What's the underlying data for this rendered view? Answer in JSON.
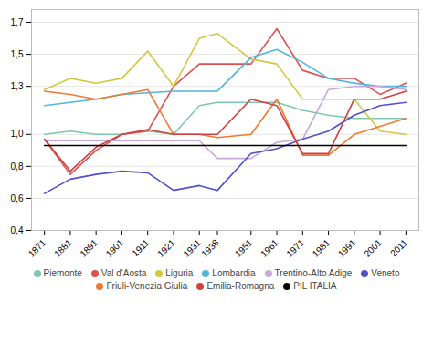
{
  "chart_data": {
    "type": "line",
    "x": [
      1871,
      1881,
      1891,
      1901,
      1911,
      1921,
      1931,
      1938,
      1951,
      1961,
      1971,
      1981,
      1991,
      2001,
      2011
    ],
    "series": [
      {
        "name": "Piemonte",
        "color": "#7dc8b0",
        "values": [
          1.0,
          1.02,
          1.0,
          1.0,
          1.02,
          1.0,
          1.18,
          1.2,
          1.2,
          1.2,
          1.15,
          1.12,
          1.1,
          1.1,
          1.1
        ]
      },
      {
        "name": "Val d'Aosta",
        "color": "#e05050",
        "values": [
          0.97,
          0.75,
          0.9,
          1.0,
          1.02,
          1.3,
          1.44,
          1.44,
          1.44,
          1.66,
          1.4,
          1.35,
          1.35,
          1.25,
          1.32
        ]
      },
      {
        "name": "Liguria",
        "color": "#d4c840",
        "values": [
          1.28,
          1.35,
          1.32,
          1.35,
          1.52,
          1.3,
          1.6,
          1.63,
          1.47,
          1.44,
          1.22,
          1.22,
          1.22,
          1.02,
          1.0
        ]
      },
      {
        "name": "Lombardia",
        "color": "#50b8d8",
        "values": [
          1.18,
          1.2,
          1.22,
          1.25,
          1.26,
          1.27,
          1.27,
          1.27,
          1.48,
          1.53,
          1.45,
          1.35,
          1.32,
          1.3,
          1.3
        ]
      },
      {
        "name": "Trentino-Alto Adige",
        "color": "#c8a8d8",
        "values": [
          0.96,
          0.96,
          0.96,
          0.96,
          0.96,
          0.96,
          0.96,
          0.85,
          0.85,
          0.95,
          0.97,
          1.28,
          1.3,
          1.3,
          1.28
        ]
      },
      {
        "name": "Veneto",
        "color": "#5050c8",
        "values": [
          0.63,
          0.72,
          0.75,
          0.77,
          0.76,
          0.65,
          0.68,
          0.65,
          0.88,
          0.91,
          0.97,
          1.02,
          1.12,
          1.18,
          1.2
        ]
      },
      {
        "name": "Friuli-Venezia Giulia",
        "color": "#f07830",
        "values": [
          1.27,
          1.25,
          1.22,
          1.25,
          1.28,
          1.0,
          1.0,
          0.98,
          1.0,
          1.22,
          0.87,
          0.87,
          1.0,
          1.05,
          1.1
        ]
      },
      {
        "name": "Emilia-Romagna",
        "color": "#d04040",
        "values": [
          0.97,
          0.77,
          0.92,
          1.0,
          1.03,
          1.0,
          1.0,
          1.0,
          1.22,
          1.18,
          0.88,
          0.88,
          1.22,
          1.22,
          1.27
        ]
      },
      {
        "name": "PIL ITALIA",
        "color": "#000000",
        "values": [
          0.93,
          0.93,
          0.93,
          0.93,
          0.93,
          0.93,
          0.93,
          0.93,
          0.93,
          0.93,
          0.93,
          0.93,
          0.93,
          0.93,
          0.93
        ]
      }
    ],
    "xlim": [
      1866,
      2016
    ],
    "xticks": [
      1871,
      1881,
      1891,
      1901,
      1911,
      1921,
      1931,
      1938,
      1951,
      1961,
      1971,
      1981,
      1991,
      2001,
      2011
    ],
    "ylim": [
      0.4,
      1.78
    ],
    "yticks": [
      {
        "value": 0.4,
        "label": "0,4"
      },
      {
        "value": 0.6,
        "label": "0,6"
      },
      {
        "value": 0.8,
        "label": "0,8"
      },
      {
        "value": 1.0,
        "label": "1,0"
      },
      {
        "value": 1.3,
        "label": "1,3"
      },
      {
        "value": 1.5,
        "label": "1,5"
      },
      {
        "value": 1.7,
        "label": "1,7"
      }
    ],
    "grid": "y",
    "legend": "bottom"
  }
}
